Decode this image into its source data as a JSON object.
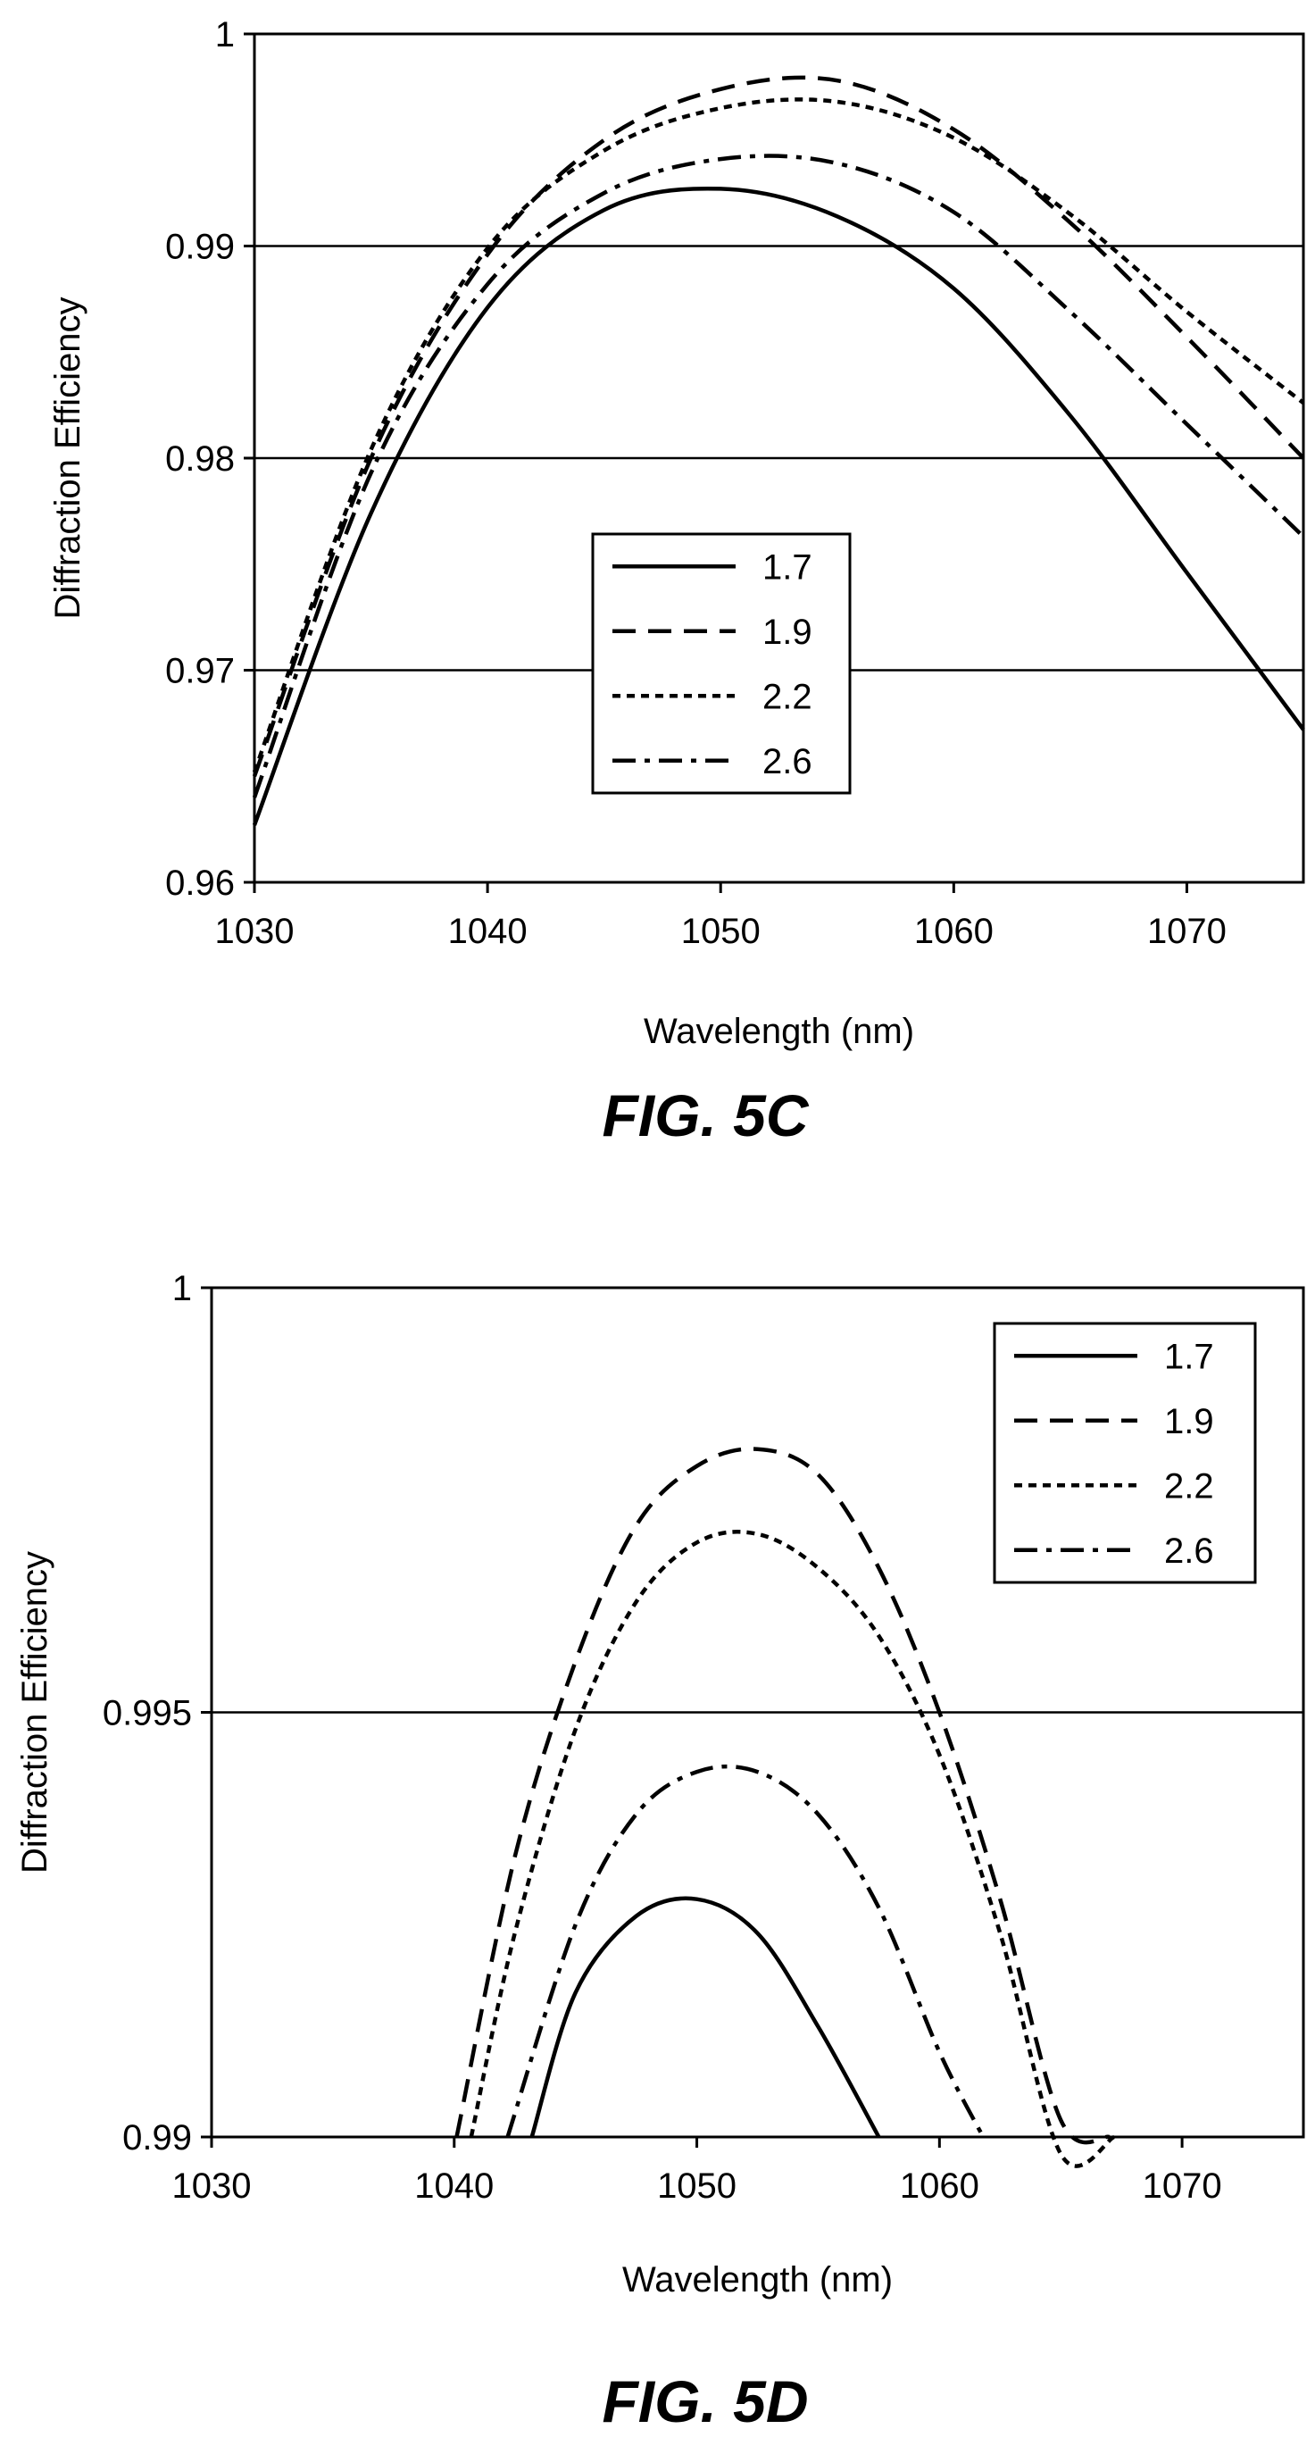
{
  "chart_data": [
    {
      "id": "c",
      "type": "line",
      "caption": "FIG. 5C",
      "xlabel": "Wavelength (nm)",
      "ylabel": "Diffraction Efficiency",
      "xlim": [
        1030,
        1075
      ],
      "ylim": [
        0.96,
        1.0
      ],
      "xticks": [
        1030,
        1040,
        1050,
        1060,
        1070
      ],
      "yticks": [
        0.96,
        0.97,
        0.98,
        0.99,
        1
      ],
      "ytick_labels": [
        "0.96",
        "0.97",
        "0.98",
        "0.99",
        "1"
      ],
      "xtick_labels": [
        "1030",
        "1040",
        "1050",
        "1060",
        "1070"
      ],
      "grid": "horizontal",
      "legend_position": "center-left",
      "series": [
        {
          "name": "1.7",
          "dash": "solid",
          "x": [
            1030,
            1035,
            1040,
            1045,
            1050,
            1055,
            1060,
            1065,
            1070,
            1075
          ],
          "y": [
            0.9627,
            0.9774,
            0.9871,
            0.9917,
            0.9927,
            0.9914,
            0.988,
            0.982,
            0.9746,
            0.9672
          ]
        },
        {
          "name": "1.9",
          "dash": "dashed",
          "x": [
            1030,
            1035,
            1040,
            1045,
            1050,
            1055,
            1060,
            1065,
            1070,
            1075
          ],
          "y": [
            0.965,
            0.98,
            0.9896,
            0.995,
            0.9974,
            0.9978,
            0.9955,
            0.9911,
            0.9857,
            0.98
          ]
        },
        {
          "name": "2.2",
          "dash": "dotted",
          "x": [
            1030,
            1035,
            1040,
            1045,
            1050,
            1055,
            1060,
            1065,
            1070,
            1075
          ],
          "y": [
            0.9652,
            0.9804,
            0.9899,
            0.9945,
            0.9965,
            0.9968,
            0.9951,
            0.9915,
            0.9869,
            0.9826
          ]
        },
        {
          "name": "2.6",
          "dash": "dashdot",
          "x": [
            1030,
            1035,
            1040,
            1045,
            1050,
            1055,
            1060,
            1065,
            1070,
            1075
          ],
          "y": [
            0.964,
            0.9793,
            0.9882,
            0.9925,
            0.9941,
            0.9939,
            0.9916,
            0.9869,
            0.9816,
            0.9763
          ]
        }
      ]
    },
    {
      "id": "d",
      "type": "line",
      "caption": "FIG. 5D",
      "xlabel": "Wavelength (nm)",
      "ylabel": "Diffraction Efficiency",
      "xlim": [
        1030,
        1075
      ],
      "ylim": [
        0.99,
        1.0
      ],
      "xticks": [
        1030,
        1040,
        1050,
        1060,
        1070
      ],
      "yticks": [
        0.99,
        0.995,
        1
      ],
      "ytick_labels": [
        "0.99",
        "0.995",
        "1"
      ],
      "xtick_labels": [
        "1030",
        "1040",
        "1050",
        "1060",
        "1070"
      ],
      "grid": "horizontal",
      "legend_position": "top-right",
      "series": [
        {
          "name": "1.7",
          "dash": "solid",
          "x": [
            1043.2,
            1045,
            1047.5,
            1050,
            1052.5,
            1055,
            1057.5
          ],
          "y": [
            0.99,
            0.9917,
            0.9926,
            0.9928,
            0.9924,
            0.9913,
            0.99
          ]
        },
        {
          "name": "1.9",
          "dash": "dashed",
          "x": [
            1040.1,
            1042.5,
            1045,
            1047.5,
            1050,
            1052.5,
            1055,
            1057.5,
            1060,
            1062.5,
            1065,
            1067
          ],
          "y": [
            0.99,
            0.9933,
            0.9956,
            0.9972,
            0.9979,
            0.9981,
            0.9978,
            0.9967,
            0.995,
            0.9928,
            0.9902,
            0.99
          ]
        },
        {
          "name": "2.2",
          "dash": "dotted",
          "x": [
            1040.7,
            1042.5,
            1045,
            1047.5,
            1050,
            1052.5,
            1055,
            1057.5,
            1060,
            1062.5,
            1065,
            1067.2
          ],
          "y": [
            0.99,
            0.9924,
            0.9948,
            0.9963,
            0.997,
            0.9971,
            0.9967,
            0.9959,
            0.9945,
            0.9924,
            0.9898,
            0.99
          ]
        },
        {
          "name": "2.6",
          "dash": "dashdot",
          "x": [
            1042.2,
            1045,
            1047.5,
            1050,
            1052.5,
            1055,
            1057.5,
            1060,
            1061.8
          ],
          "y": [
            0.99,
            0.9925,
            0.9938,
            0.9943,
            0.9943,
            0.9938,
            0.9927,
            0.991,
            0.99
          ]
        }
      ]
    }
  ]
}
